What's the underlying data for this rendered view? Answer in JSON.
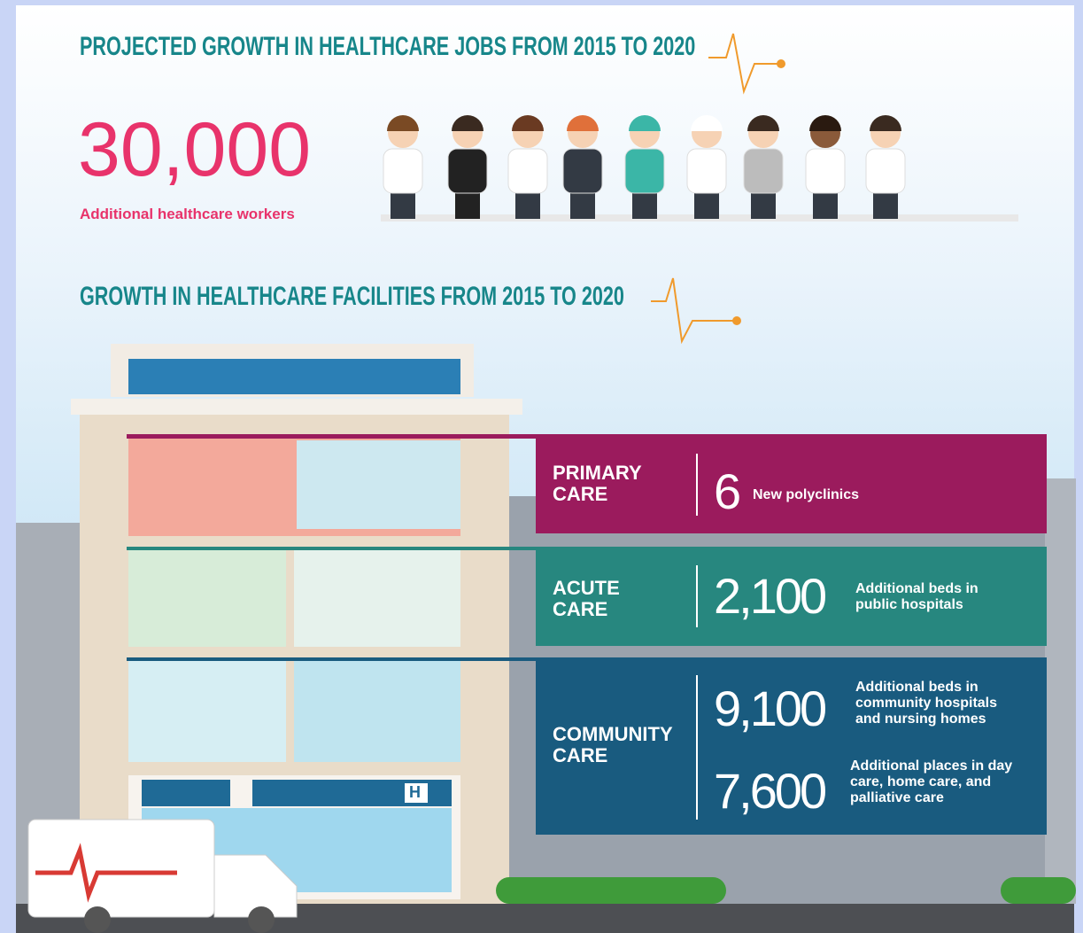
{
  "jobs": {
    "title": "PROJECTED GROWTH IN HEALTHCARE JOBS FROM 2015 TO 2020",
    "number": "30,000",
    "label": "Additional healthcare workers"
  },
  "facilities": {
    "title": "GROWTH IN HEALTHCARE FACILITIES FROM 2015 TO 2020",
    "sign": "H",
    "panels": [
      {
        "name": "PRIMARY CARE",
        "items": [
          {
            "number": "6",
            "label": "New polyclinics"
          }
        ]
      },
      {
        "name": "ACUTE CARE",
        "items": [
          {
            "number": "2,100",
            "label": "Additional beds in public hospitals"
          }
        ]
      },
      {
        "name": "COMMUNITY CARE",
        "items": [
          {
            "number": "9,100",
            "label": "Additional beds in community hospitals and nursing homes"
          },
          {
            "number": "7,600",
            "label": "Additional places in day care, home care, and palliative care"
          }
        ]
      }
    ]
  }
}
